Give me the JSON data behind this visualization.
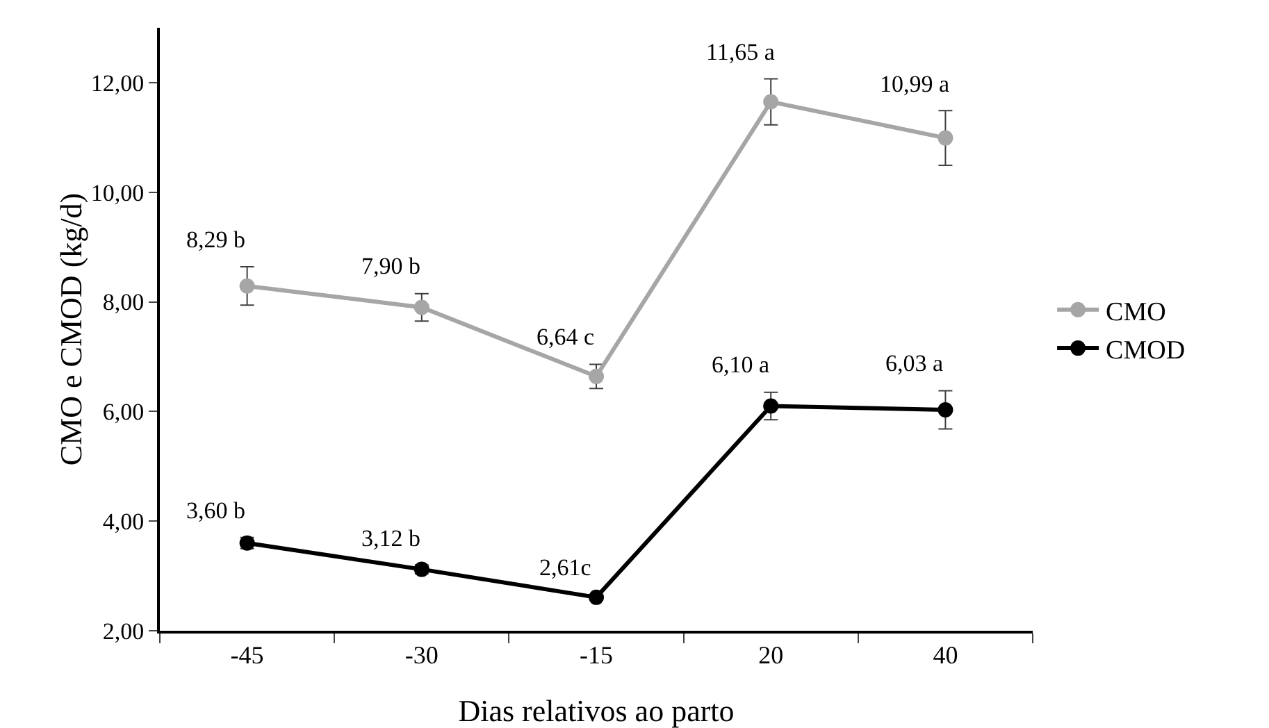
{
  "chart_data": {
    "type": "line",
    "xlabel": "Dias relativos ao parto",
    "ylabel": "CMO e CMOD (kg/d)",
    "categories": [
      "-45",
      "-30",
      "-15",
      "20",
      "40"
    ],
    "series": [
      {
        "name": "CMO",
        "color": "#a6a6a6",
        "values": [
          8.29,
          7.9,
          6.64,
          11.65,
          10.99
        ],
        "errors": [
          0.35,
          0.25,
          0.22,
          0.42,
          0.5
        ],
        "value_labels": [
          "8,29 b",
          "7,90 b",
          "6,64 c",
          "11,65 a",
          "10,99 a"
        ]
      },
      {
        "name": "CMOD",
        "color": "#000000",
        "values": [
          3.6,
          3.12,
          2.61,
          6.1,
          6.03
        ],
        "errors": [
          0.1,
          0.08,
          0.05,
          0.25,
          0.35
        ],
        "value_labels": [
          "3,60 b",
          "3,12 b",
          "2,61c",
          "6,10 a",
          "6,03 a"
        ]
      }
    ],
    "ylim": [
      2,
      13
    ],
    "yticks": [
      {
        "value": 2,
        "label": "2,00"
      },
      {
        "value": 4,
        "label": "4,00"
      },
      {
        "value": 6,
        "label": "6,00"
      },
      {
        "value": 8,
        "label": "8,00"
      },
      {
        "value": 10,
        "label": "10,00"
      },
      {
        "value": 12,
        "label": "12,00"
      }
    ],
    "grid": false,
    "legend": "right",
    "marker": "circle",
    "line_style": "solid"
  }
}
